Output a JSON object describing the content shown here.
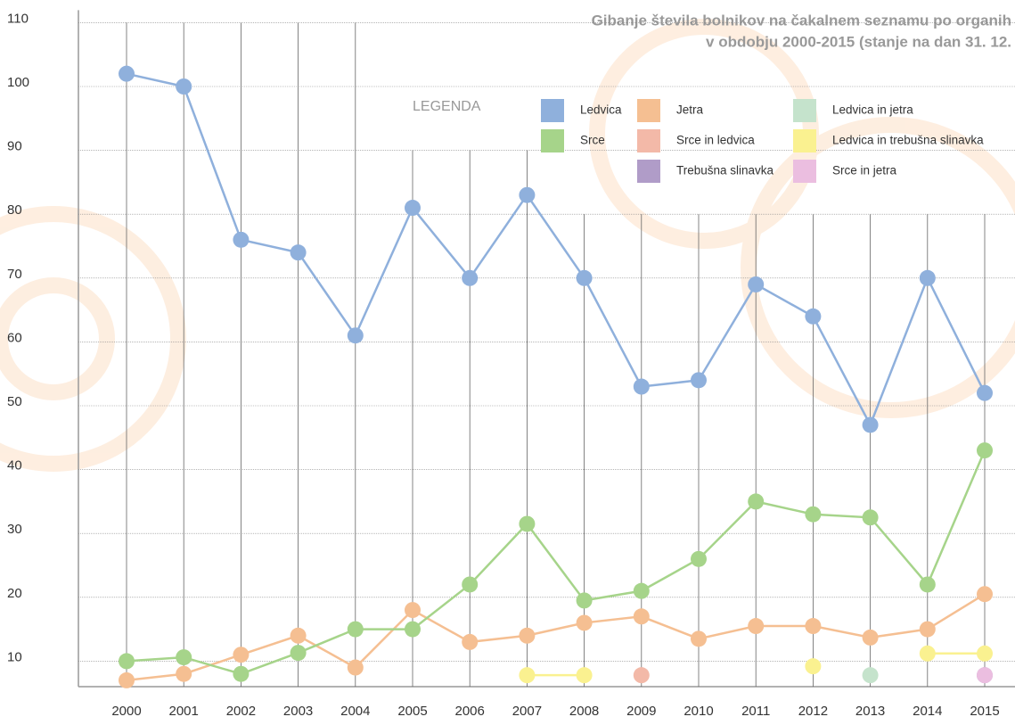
{
  "chart_data": {
    "type": "line",
    "title": [
      "Gibanje števila bolnikov na čakalnem seznamu po organih",
      "v obdobju 2000-2015 (stanje na dan 31. 12."
    ],
    "legend_title": "LEGENDA",
    "categories": [
      "2000",
      "2001",
      "2002",
      "2003",
      "2004",
      "2005",
      "2006",
      "2007",
      "2008",
      "2009",
      "2010",
      "2011",
      "2012",
      "2013",
      "2014",
      "2015"
    ],
    "ylim": [
      6,
      110
    ],
    "yticks": [
      10,
      20,
      30,
      40,
      50,
      60,
      70,
      80,
      90,
      100,
      110
    ],
    "grid": true,
    "series": [
      {
        "name": "Ledvica",
        "color": "#8fb0dc",
        "values": [
          102,
          100,
          76,
          74,
          61,
          81,
          70,
          83,
          70,
          53,
          54,
          69,
          64,
          47,
          70,
          52
        ]
      },
      {
        "name": "Jetra",
        "color": "#f5bf92",
        "values": [
          7,
          8,
          11,
          14,
          9,
          18,
          13,
          14,
          16,
          17,
          13.5,
          15.5,
          15.5,
          13.7,
          15,
          20.5
        ]
      },
      {
        "name": "Ledvica in jetra",
        "color": "#c5e3cc",
        "values": [
          null,
          null,
          null,
          null,
          null,
          null,
          null,
          null,
          null,
          null,
          null,
          null,
          null,
          7.8,
          null,
          null
        ]
      },
      {
        "name": "Srce",
        "color": "#a6d48a",
        "values": [
          10,
          10.6,
          8,
          11.3,
          15,
          15,
          22,
          31.5,
          19.5,
          21,
          26,
          35,
          33,
          32.5,
          22,
          43
        ]
      },
      {
        "name": "Srce in ledvica",
        "color": "#f3b9a8",
        "values": [
          null,
          null,
          null,
          null,
          null,
          null,
          null,
          null,
          null,
          7.8,
          null,
          null,
          null,
          null,
          null,
          null
        ]
      },
      {
        "name": "Ledvica in trebušna slinavka",
        "color": "#faf190",
        "values": [
          null,
          null,
          null,
          null,
          null,
          null,
          null,
          7.8,
          7.8,
          null,
          null,
          null,
          9.2,
          null,
          11.2,
          11.2
        ]
      },
      {
        "name": "Trebušna slinavka",
        "color": "#b09cc8",
        "values": [
          null,
          null,
          null,
          null,
          null,
          null,
          null,
          null,
          null,
          null,
          null,
          null,
          null,
          null,
          null,
          7.8
        ]
      },
      {
        "name": "Srce in jetra",
        "color": "#ebbee0",
        "values": [
          null,
          null,
          null,
          null,
          null,
          null,
          null,
          null,
          null,
          null,
          null,
          null,
          null,
          null,
          null,
          7.8
        ]
      }
    ]
  }
}
